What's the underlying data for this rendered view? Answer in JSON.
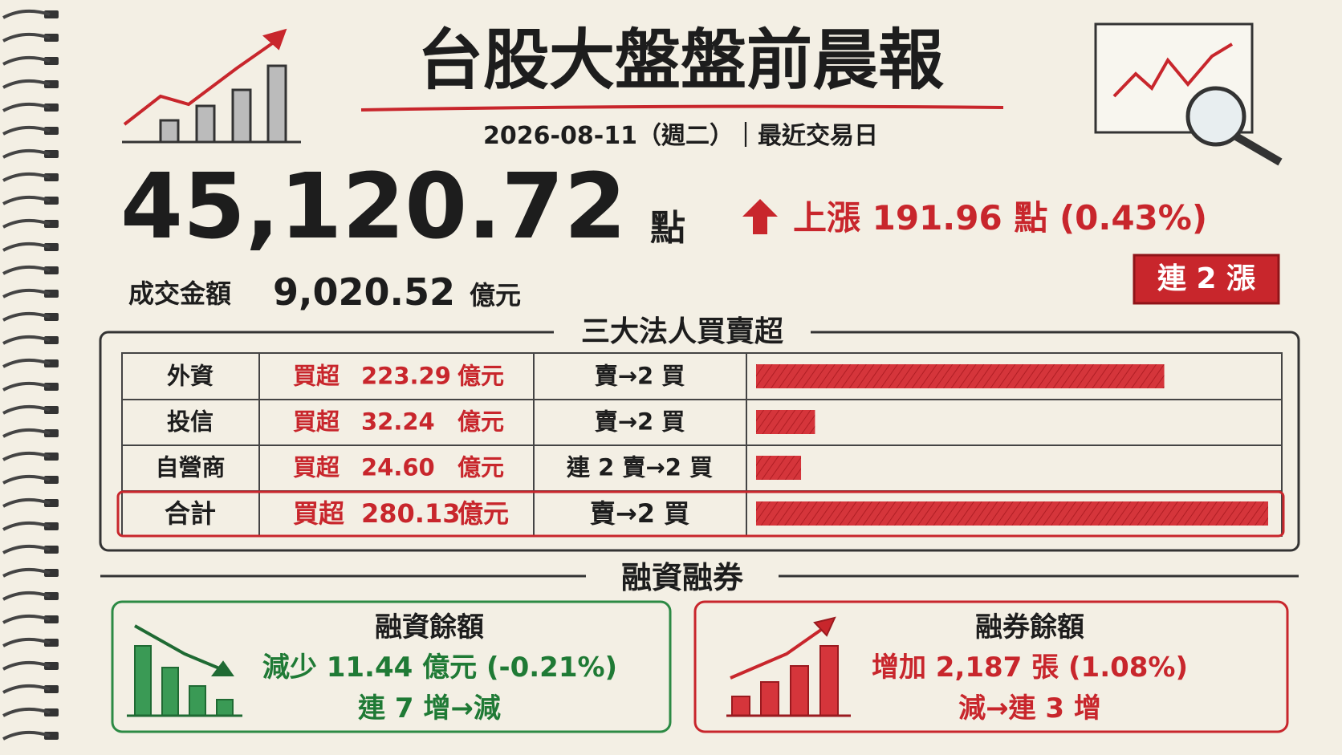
{
  "header": {
    "title": "台股大盤盤前晨報",
    "date_line": "2026-08-11（週二）｜最近交易日"
  },
  "index": {
    "value": "45,120.72",
    "unit": "點",
    "change_text": "上漲 191.96 點 (0.43%)",
    "streak": "連 2 漲"
  },
  "turnover": {
    "label": "成交金額",
    "value": "9,020.52",
    "unit": "億元"
  },
  "institutional": {
    "title": "三大法人買賣超",
    "rows": [
      {
        "name": "外資",
        "action": "買超",
        "amount": "223.29",
        "unit": "億元",
        "trend": "賣→2 買"
      },
      {
        "name": "投信",
        "action": "買超",
        "amount": "32.24",
        "unit": "億元",
        "trend": "賣→2 買"
      },
      {
        "name": "自營商",
        "action": "買超",
        "amount": "24.60",
        "unit": "億元",
        "trend": "連 2 賣→2 買"
      },
      {
        "name": "合計",
        "action": "買超",
        "amount": "280.13",
        "unit": "億元",
        "trend": "賣→2 買"
      }
    ]
  },
  "margin": {
    "title": "融資融券",
    "financing": {
      "title": "融資餘額",
      "change": "減少 11.44 億元 (-0.21%)",
      "trend": "連 7 增→減"
    },
    "short": {
      "title": "融券餘額",
      "change": "增加 2,187 張 (1.08%)",
      "trend": "減→連 3 增"
    }
  }
}
